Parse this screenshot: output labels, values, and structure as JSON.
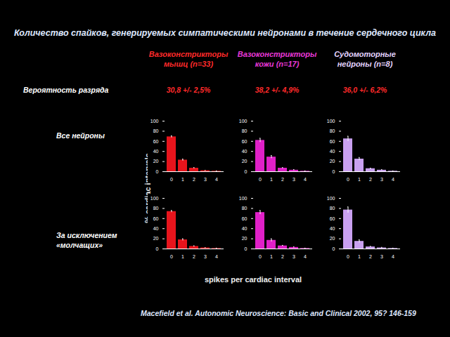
{
  "title": "Количество спайков, генерируемых симпатическими нейронами в течение сердечного цикла",
  "probability_label": "Вероятность разряда",
  "columns": [
    {
      "lines": [
        "Вазоконстрикторы",
        "мышц (n=33)"
      ],
      "color": "#ff2a2a",
      "probability": "30,8 +/- 2,5%"
    },
    {
      "lines": [
        "Вазоконстрикторы",
        "кожи (n=17)"
      ],
      "color": "#e838d8",
      "probability": "38,2 +/- 4,9%"
    },
    {
      "lines": [
        "Судомоторные",
        "нейроны (n=8)"
      ],
      "color": "#e4d4ff",
      "probability": "36,0 +/- 6,2%"
    }
  ],
  "row_labels": [
    [
      "Все нейроны"
    ],
    [
      "За исключением",
      "«молчащих»"
    ]
  ],
  "y_label": "% cardiac intervals",
  "x_label": "spikes per cardiac interval",
  "source": "Macefield et al. Autonomic Neuroscience: Basic and Clinical  2002, 95? 146-159",
  "chart_data": [
    {
      "type": "bar",
      "categories": [
        0,
        1,
        2,
        3,
        4
      ],
      "values": [
        69,
        23,
        7,
        2,
        1
      ],
      "errors": [
        2,
        2,
        1,
        0.5,
        0.5
      ],
      "color": "#e8141c",
      "ylim": [
        0,
        100
      ],
      "yticks": [
        0,
        20,
        40,
        60,
        80,
        100
      ]
    },
    {
      "type": "bar",
      "categories": [
        0,
        1,
        2,
        3,
        4
      ],
      "values": [
        62,
        29,
        7,
        3,
        1
      ],
      "errors": [
        4,
        3,
        1,
        1,
        0.5
      ],
      "color": "#e020c8",
      "ylim": [
        0,
        100
      ],
      "yticks": [
        0,
        20,
        40,
        60,
        80,
        100
      ]
    },
    {
      "type": "bar",
      "categories": [
        0,
        1,
        2,
        3,
        4
      ],
      "values": [
        65,
        25,
        6,
        3,
        1
      ],
      "errors": [
        5,
        3,
        1,
        1,
        0.5
      ],
      "color": "#c9a0f0",
      "ylim": [
        0,
        100
      ],
      "yticks": [
        0,
        20,
        40,
        60,
        80,
        100
      ]
    },
    {
      "type": "bar",
      "categories": [
        0,
        1,
        2,
        3,
        4
      ],
      "values": [
        74,
        18,
        5,
        2,
        1
      ],
      "errors": [
        2,
        2,
        1,
        0.5,
        0.5
      ],
      "color": "#e8141c",
      "ylim": [
        0,
        100
      ],
      "yticks": [
        0,
        20,
        40,
        60,
        80,
        100
      ]
    },
    {
      "type": "bar",
      "categories": [
        0,
        1,
        2,
        3,
        4
      ],
      "values": [
        72,
        17,
        6,
        3,
        1
      ],
      "errors": [
        4,
        3,
        1,
        1,
        0.5
      ],
      "color": "#e020c8",
      "ylim": [
        0,
        100
      ],
      "yticks": [
        0,
        20,
        40,
        60,
        80,
        100
      ]
    },
    {
      "type": "bar",
      "categories": [
        0,
        1,
        2,
        3,
        4
      ],
      "values": [
        77,
        15,
        4,
        2,
        1
      ],
      "errors": [
        6,
        3,
        1,
        1,
        0.5
      ],
      "color": "#c9a0f0",
      "ylim": [
        0,
        100
      ],
      "yticks": [
        0,
        20,
        40,
        60,
        80,
        100
      ]
    }
  ]
}
